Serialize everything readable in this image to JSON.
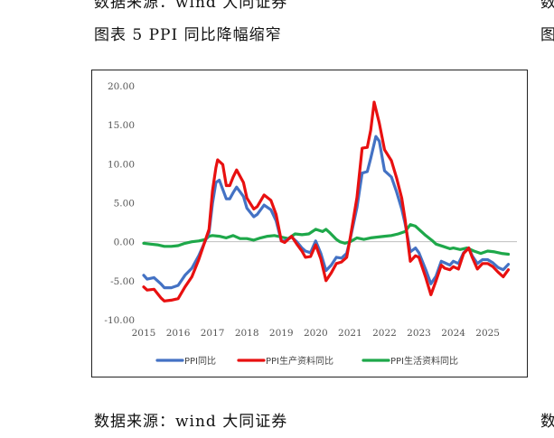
{
  "header": {
    "top_source": "数据来源：wind 大同证券",
    "caption": "图表 5 PPI 同比降幅缩窄",
    "bottom_source": "数据来源：wind 大同证券",
    "edge_marks": [
      "数",
      "图",
      "数"
    ]
  },
  "chart_data": {
    "type": "line",
    "title": "",
    "xlabel": "",
    "ylabel": "",
    "ylim": [
      -10,
      20
    ],
    "yticks": [
      "20.00",
      "15.00",
      "10.00",
      "5.00",
      "0.00",
      "-5.00",
      "-10.00"
    ],
    "ytick_values": [
      20,
      15,
      10,
      5,
      0,
      -5,
      -10
    ],
    "xlim": [
      2015,
      2025.85
    ],
    "xticks": [
      "2015",
      "2016",
      "2017",
      "2018",
      "2019",
      "2020",
      "2021",
      "2022",
      "2023",
      "2024",
      "2025"
    ],
    "xtick_values": [
      2015,
      2016,
      2017,
      2018,
      2019,
      2020,
      2021,
      2022,
      2023,
      2024,
      2025
    ],
    "legend_position": "bottom",
    "series": [
      {
        "name": "PPI同比",
        "color": "#4472C4",
        "points": [
          [
            2015.0,
            -4.3
          ],
          [
            2015.1,
            -4.8
          ],
          [
            2015.3,
            -4.6
          ],
          [
            2015.5,
            -5.4
          ],
          [
            2015.6,
            -5.9
          ],
          [
            2015.8,
            -5.9
          ],
          [
            2016.0,
            -5.6
          ],
          [
            2016.2,
            -4.3
          ],
          [
            2016.4,
            -3.4
          ],
          [
            2016.6,
            -1.8
          ],
          [
            2016.7,
            -0.8
          ],
          [
            2016.9,
            1.2
          ],
          [
            2017.0,
            4.9
          ],
          [
            2017.1,
            7.6
          ],
          [
            2017.2,
            7.9
          ],
          [
            2017.4,
            5.5
          ],
          [
            2017.5,
            5.5
          ],
          [
            2017.6,
            6.3
          ],
          [
            2017.7,
            7.0
          ],
          [
            2017.9,
            5.8
          ],
          [
            2018.0,
            4.3
          ],
          [
            2018.2,
            3.2
          ],
          [
            2018.3,
            3.5
          ],
          [
            2018.5,
            4.7
          ],
          [
            2018.7,
            4.1
          ],
          [
            2018.85,
            2.7
          ],
          [
            2019.0,
            0.1
          ],
          [
            2019.1,
            0.1
          ],
          [
            2019.3,
            0.6
          ],
          [
            2019.45,
            0.0
          ],
          [
            2019.6,
            -0.8
          ],
          [
            2019.7,
            -1.2
          ],
          [
            2019.85,
            -1.4
          ],
          [
            2020.0,
            0.1
          ],
          [
            2020.15,
            -1.5
          ],
          [
            2020.3,
            -3.7
          ],
          [
            2020.45,
            -3.0
          ],
          [
            2020.6,
            -2.0
          ],
          [
            2020.75,
            -2.1
          ],
          [
            2020.9,
            -1.5
          ],
          [
            2021.0,
            0.3
          ],
          [
            2021.2,
            4.4
          ],
          [
            2021.35,
            8.8
          ],
          [
            2021.5,
            9.0
          ],
          [
            2021.6,
            10.7
          ],
          [
            2021.75,
            13.5
          ],
          [
            2021.85,
            12.9
          ],
          [
            2022.0,
            9.1
          ],
          [
            2022.2,
            8.3
          ],
          [
            2022.35,
            6.4
          ],
          [
            2022.5,
            4.2
          ],
          [
            2022.6,
            2.3
          ],
          [
            2022.75,
            -1.3
          ],
          [
            2022.9,
            -0.8
          ],
          [
            2023.0,
            -1.4
          ],
          [
            2023.2,
            -3.6
          ],
          [
            2023.35,
            -5.4
          ],
          [
            2023.5,
            -4.4
          ],
          [
            2023.65,
            -2.5
          ],
          [
            2023.75,
            -2.7
          ],
          [
            2023.9,
            -3.0
          ],
          [
            2024.0,
            -2.5
          ],
          [
            2024.15,
            -2.8
          ],
          [
            2024.3,
            -1.4
          ],
          [
            2024.45,
            -0.8
          ],
          [
            2024.55,
            -1.8
          ],
          [
            2024.7,
            -2.8
          ],
          [
            2024.85,
            -2.3
          ],
          [
            2025.0,
            -2.3
          ],
          [
            2025.15,
            -2.7
          ],
          [
            2025.3,
            -3.3
          ],
          [
            2025.45,
            -3.6
          ],
          [
            2025.6,
            -2.9
          ]
        ]
      },
      {
        "name": "PPI生产资料同比",
        "color": "#E81010",
        "points": [
          [
            2015.0,
            -5.8
          ],
          [
            2015.1,
            -6.2
          ],
          [
            2015.3,
            -6.1
          ],
          [
            2015.5,
            -7.2
          ],
          [
            2015.6,
            -7.6
          ],
          [
            2015.8,
            -7.5
          ],
          [
            2016.0,
            -7.3
          ],
          [
            2016.2,
            -5.8
          ],
          [
            2016.4,
            -4.5
          ],
          [
            2016.6,
            -2.3
          ],
          [
            2016.7,
            -1.0
          ],
          [
            2016.9,
            1.6
          ],
          [
            2017.0,
            6.5
          ],
          [
            2017.1,
            9.5
          ],
          [
            2017.15,
            10.5
          ],
          [
            2017.3,
            9.9
          ],
          [
            2017.4,
            7.2
          ],
          [
            2017.5,
            7.2
          ],
          [
            2017.6,
            8.3
          ],
          [
            2017.7,
            9.2
          ],
          [
            2017.9,
            7.6
          ],
          [
            2018.0,
            5.6
          ],
          [
            2018.2,
            4.2
          ],
          [
            2018.3,
            4.5
          ],
          [
            2018.5,
            6.0
          ],
          [
            2018.7,
            5.3
          ],
          [
            2018.85,
            3.5
          ],
          [
            2019.0,
            0.1
          ],
          [
            2019.1,
            -0.1
          ],
          [
            2019.3,
            0.7
          ],
          [
            2019.45,
            -0.3
          ],
          [
            2019.6,
            -1.2
          ],
          [
            2019.7,
            -2.0
          ],
          [
            2019.85,
            -1.9
          ],
          [
            2020.0,
            -0.4
          ],
          [
            2020.15,
            -2.2
          ],
          [
            2020.3,
            -5.0
          ],
          [
            2020.45,
            -4.0
          ],
          [
            2020.6,
            -2.8
          ],
          [
            2020.75,
            -2.6
          ],
          [
            2020.9,
            -2.0
          ],
          [
            2021.0,
            0.4
          ],
          [
            2021.2,
            5.7
          ],
          [
            2021.35,
            12.0
          ],
          [
            2021.5,
            12.1
          ],
          [
            2021.6,
            14.3
          ],
          [
            2021.7,
            17.9
          ],
          [
            2021.75,
            17.0
          ],
          [
            2021.85,
            15.2
          ],
          [
            2022.0,
            11.8
          ],
          [
            2022.2,
            10.4
          ],
          [
            2022.35,
            8.2
          ],
          [
            2022.5,
            5.6
          ],
          [
            2022.6,
            2.8
          ],
          [
            2022.75,
            -2.5
          ],
          [
            2022.9,
            -1.8
          ],
          [
            2023.0,
            -2.0
          ],
          [
            2023.2,
            -4.6
          ],
          [
            2023.35,
            -6.8
          ],
          [
            2023.5,
            -5.0
          ],
          [
            2023.65,
            -3.0
          ],
          [
            2023.75,
            -3.4
          ],
          [
            2023.9,
            -3.6
          ],
          [
            2024.0,
            -3.2
          ],
          [
            2024.15,
            -3.5
          ],
          [
            2024.3,
            -1.5
          ],
          [
            2024.45,
            -0.8
          ],
          [
            2024.55,
            -2.0
          ],
          [
            2024.7,
            -3.5
          ],
          [
            2024.85,
            -2.8
          ],
          [
            2025.0,
            -2.8
          ],
          [
            2025.15,
            -3.2
          ],
          [
            2025.3,
            -3.9
          ],
          [
            2025.45,
            -4.5
          ],
          [
            2025.6,
            -3.6
          ]
        ]
      },
      {
        "name": "PPI生活资料同比",
        "color": "#1EA84A",
        "points": [
          [
            2015.0,
            -0.2
          ],
          [
            2015.2,
            -0.3
          ],
          [
            2015.4,
            -0.4
          ],
          [
            2015.6,
            -0.6
          ],
          [
            2015.8,
            -0.6
          ],
          [
            2016.0,
            -0.5
          ],
          [
            2016.2,
            -0.2
          ],
          [
            2016.4,
            0.0
          ],
          [
            2016.6,
            0.1
          ],
          [
            2016.8,
            0.3
          ],
          [
            2016.9,
            0.7
          ],
          [
            2017.0,
            0.8
          ],
          [
            2017.2,
            0.7
          ],
          [
            2017.4,
            0.5
          ],
          [
            2017.6,
            0.8
          ],
          [
            2017.8,
            0.4
          ],
          [
            2018.0,
            0.4
          ],
          [
            2018.2,
            0.2
          ],
          [
            2018.4,
            0.5
          ],
          [
            2018.6,
            0.7
          ],
          [
            2018.8,
            0.8
          ],
          [
            2019.0,
            0.6
          ],
          [
            2019.2,
            0.4
          ],
          [
            2019.4,
            1.0
          ],
          [
            2019.6,
            0.9
          ],
          [
            2019.8,
            1.0
          ],
          [
            2020.0,
            1.6
          ],
          [
            2020.2,
            1.3
          ],
          [
            2020.3,
            1.6
          ],
          [
            2020.4,
            1.2
          ],
          [
            2020.6,
            0.3
          ],
          [
            2020.7,
            0.0
          ],
          [
            2020.85,
            -0.2
          ],
          [
            2021.0,
            0.0
          ],
          [
            2021.2,
            0.5
          ],
          [
            2021.4,
            0.3
          ],
          [
            2021.6,
            0.5
          ],
          [
            2021.8,
            0.6
          ],
          [
            2022.0,
            0.7
          ],
          [
            2022.2,
            0.8
          ],
          [
            2022.4,
            1.0
          ],
          [
            2022.6,
            1.3
          ],
          [
            2022.75,
            2.2
          ],
          [
            2022.9,
            2.0
          ],
          [
            2023.0,
            1.6
          ],
          [
            2023.2,
            0.8
          ],
          [
            2023.4,
            0.1
          ],
          [
            2023.5,
            -0.3
          ],
          [
            2023.7,
            -0.6
          ],
          [
            2023.9,
            -0.9
          ],
          [
            2024.0,
            -0.8
          ],
          [
            2024.2,
            -1.0
          ],
          [
            2024.4,
            -0.8
          ],
          [
            2024.6,
            -1.2
          ],
          [
            2024.8,
            -1.5
          ],
          [
            2025.0,
            -1.2
          ],
          [
            2025.2,
            -1.3
          ],
          [
            2025.4,
            -1.5
          ],
          [
            2025.6,
            -1.6
          ]
        ]
      }
    ]
  }
}
